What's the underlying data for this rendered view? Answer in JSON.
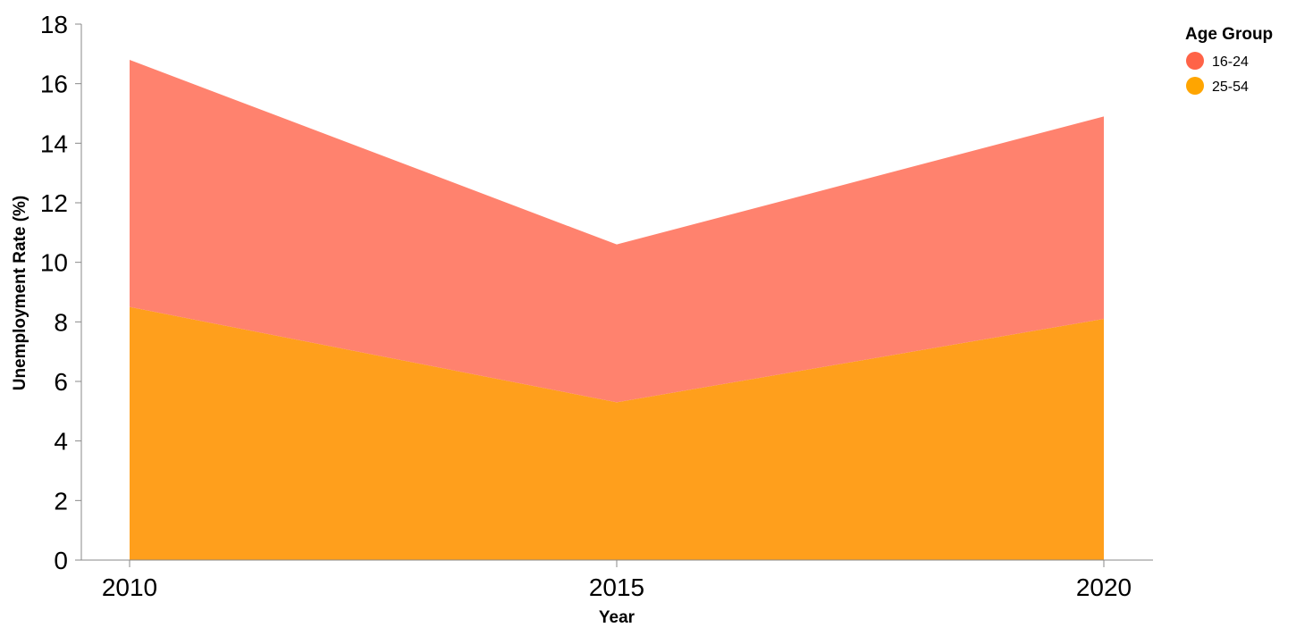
{
  "chart_data": {
    "type": "area",
    "stacked": true,
    "x": [
      2010,
      2015,
      2020
    ],
    "series": [
      {
        "name": "25-54",
        "values": [
          8.5,
          5.3,
          8.1
        ],
        "color": "#ff9f1c",
        "legend_color": "#ffa500"
      },
      {
        "name": "16-24",
        "values": [
          8.3,
          5.3,
          6.8
        ],
        "color": "#ff826e",
        "legend_color": "#ff6347"
      }
    ],
    "xlabel": "Year",
    "ylabel": "Unemployment Rate (%)",
    "ylim": [
      0,
      18
    ],
    "yticks": [
      0,
      2,
      4,
      6,
      8,
      10,
      12,
      14,
      16,
      18
    ],
    "xticks": [
      "2010",
      "2015",
      "2020"
    ],
    "grid": false,
    "legend": {
      "title": "Age Group",
      "placement": "top-right",
      "items": [
        "16-24",
        "25-54"
      ]
    }
  }
}
